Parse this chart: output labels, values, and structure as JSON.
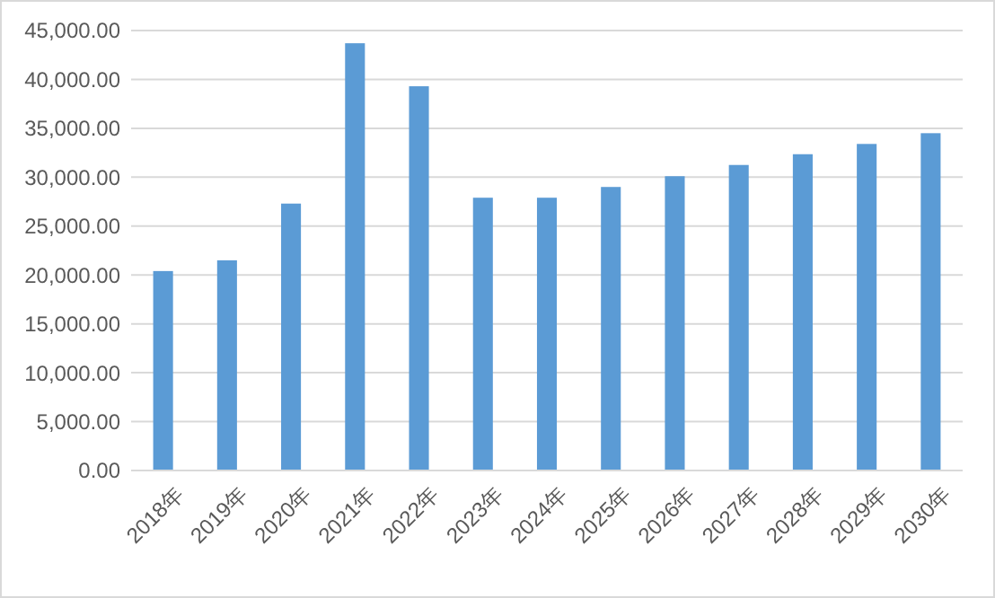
{
  "chart_data": {
    "type": "bar",
    "categories": [
      "2018年",
      "2019年",
      "2020年",
      "2021年",
      "2022年",
      "2023年",
      "2024年",
      "2025年",
      "2026年",
      "2027年",
      "2028年",
      "2029年",
      "2030年"
    ],
    "values": [
      20400,
      21500,
      27300,
      43700,
      39300,
      27900,
      27900,
      29000,
      30100,
      31250,
      32350,
      33400,
      34500
    ],
    "color": "#5b9bd5",
    "ylim": [
      0,
      45000
    ],
    "yticks": [
      {
        "value": 0,
        "label": "0.00"
      },
      {
        "value": 5000,
        "label": "5,000.00"
      },
      {
        "value": 10000,
        "label": "10,000.00"
      },
      {
        "value": 15000,
        "label": "15,000.00"
      },
      {
        "value": 20000,
        "label": "20,000.00"
      },
      {
        "value": 25000,
        "label": "25,000.00"
      },
      {
        "value": 30000,
        "label": "30,000.00"
      },
      {
        "value": 35000,
        "label": "35,000.00"
      },
      {
        "value": 40000,
        "label": "40,000.00"
      },
      {
        "value": 45000,
        "label": "45,000.00"
      }
    ],
    "grid": "y"
  }
}
